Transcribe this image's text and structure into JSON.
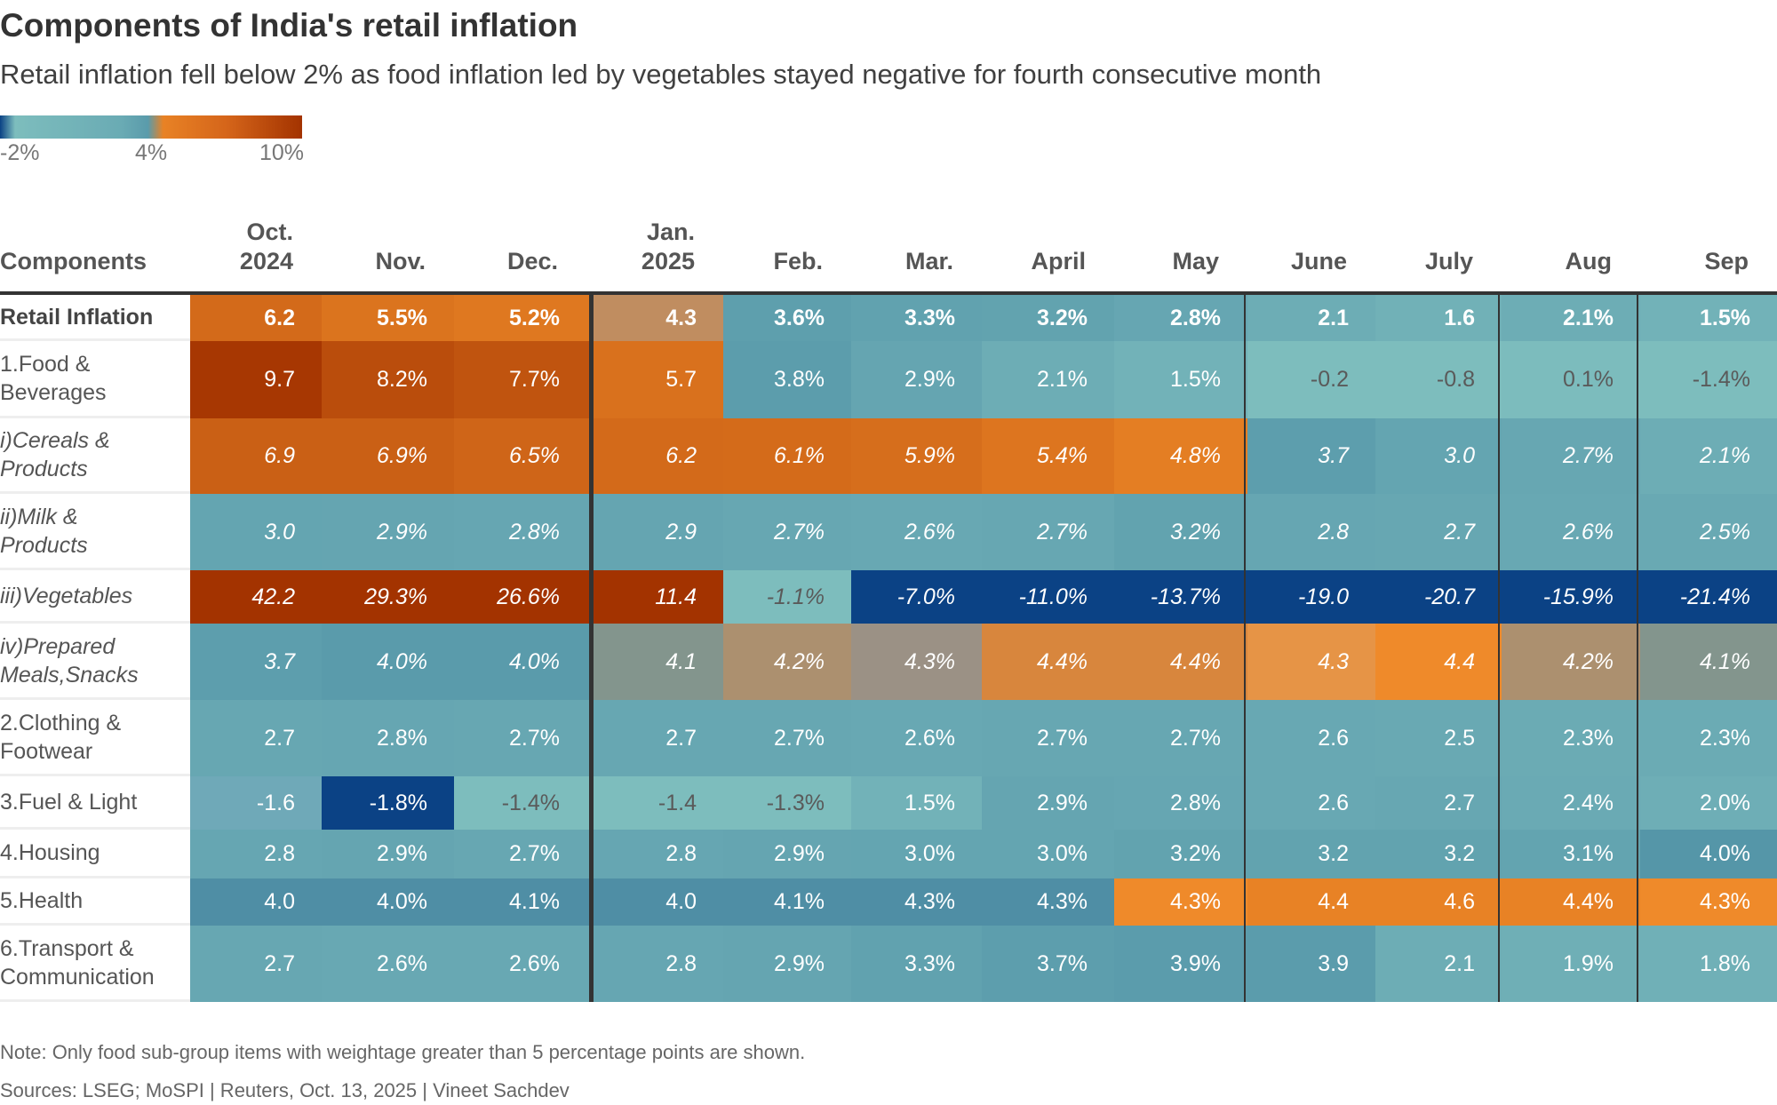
{
  "title": "Components of India's retail inflation",
  "subtitle": "Retail inflation fell below 2% as food inflation led by vegetables stayed negative for fourth consecutive month",
  "legend": {
    "labels": [
      "-2%",
      "4%",
      "10%"
    ],
    "colors": [
      "#0b4285",
      "#7dbdbd",
      "#5a9bab",
      "#e88225",
      "#a33300"
    ]
  },
  "note": "Note: Only food sub-group items with weightage greater than 5 percentage points are shown.",
  "source": "Sources: LSEG; MoSPI | Reuters, Oct. 13, 2025 | Vineet Sachdev",
  "chart_data": {
    "type": "heatmap",
    "title": "Components of India's retail inflation",
    "subtitle": "Retail inflation fell below 2% as food inflation led by vegetables stayed negative for fourth consecutive month",
    "row_header": "Components",
    "columns": [
      [
        "Oct.",
        "2024"
      ],
      [
        "",
        "Nov."
      ],
      [
        "",
        "Dec."
      ],
      [
        "Jan.",
        "2025"
      ],
      [
        "",
        "Feb."
      ],
      [
        "",
        "Mar."
      ],
      [
        "",
        "April"
      ],
      [
        "",
        "May"
      ],
      [
        "",
        "June"
      ],
      [
        "",
        "July"
      ],
      [
        "",
        "Aug"
      ],
      [
        "",
        "Sep"
      ]
    ],
    "rows": [
      {
        "label": [
          "Retail Inflation"
        ],
        "style": "bold",
        "values": [
          6.2,
          5.5,
          5.2,
          4.3,
          3.6,
          3.3,
          3.2,
          2.8,
          2.1,
          1.6,
          2.1,
          1.5
        ]
      },
      {
        "label": [
          "1.Food &",
          "Beverages"
        ],
        "style": "normal",
        "values": [
          9.7,
          8.2,
          7.7,
          5.7,
          3.8,
          2.9,
          2.1,
          1.5,
          -0.2,
          -0.8,
          0.1,
          -1.4
        ]
      },
      {
        "label": [
          "i)Cereals &",
          "Products"
        ],
        "style": "ital",
        "values": [
          6.9,
          6.9,
          6.5,
          6.2,
          6.1,
          5.9,
          5.4,
          4.8,
          3.7,
          3.0,
          2.7,
          2.1
        ]
      },
      {
        "label": [
          "ii)Milk &",
          "Products"
        ],
        "style": "ital",
        "values": [
          3.0,
          2.9,
          2.8,
          2.9,
          2.7,
          2.6,
          2.7,
          3.2,
          2.8,
          2.7,
          2.6,
          2.5
        ]
      },
      {
        "label": [
          "iii)Vegetables"
        ],
        "style": "ital",
        "values": [
          42.2,
          29.3,
          26.6,
          11.4,
          -1.1,
          -7.0,
          -11.0,
          -13.7,
          -19.0,
          -20.7,
          -15.9,
          -21.4
        ]
      },
      {
        "label": [
          "iv)Prepared",
          "Meals,Snacks"
        ],
        "style": "ital",
        "values": [
          3.7,
          4.0,
          4.0,
          4.1,
          4.2,
          4.3,
          4.4,
          4.4,
          4.3,
          4.4,
          4.2,
          4.1
        ]
      },
      {
        "label": [
          "2.Clothing &",
          "Footwear"
        ],
        "style": "normal",
        "values": [
          2.7,
          2.8,
          2.7,
          2.7,
          2.7,
          2.6,
          2.7,
          2.7,
          2.6,
          2.5,
          2.3,
          2.3
        ]
      },
      {
        "label": [
          "3.Fuel & Light"
        ],
        "style": "normal",
        "values": [
          -1.6,
          -1.8,
          -1.4,
          -1.4,
          -1.3,
          1.5,
          2.9,
          2.8,
          2.6,
          2.7,
          2.4,
          2.0
        ]
      },
      {
        "label": [
          "4.Housing"
        ],
        "style": "normal",
        "values": [
          2.8,
          2.9,
          2.7,
          2.8,
          2.9,
          3.0,
          3.0,
          3.2,
          3.2,
          3.2,
          3.1,
          4.0
        ]
      },
      {
        "label": [
          "5.Health"
        ],
        "style": "normal",
        "values": [
          4.0,
          4.0,
          4.1,
          4.0,
          4.1,
          4.3,
          4.3,
          4.3,
          4.4,
          4.6,
          4.4,
          4.3
        ]
      },
      {
        "label": [
          "6.Transport &",
          "Communication"
        ],
        "style": "normal",
        "values": [
          2.7,
          2.6,
          2.6,
          2.8,
          2.9,
          3.3,
          3.7,
          3.9,
          3.9,
          2.1,
          1.9,
          1.8
        ]
      }
    ],
    "percent_suffix_columns": [
      false,
      true,
      true,
      false,
      true,
      true,
      true,
      true,
      false,
      false,
      true,
      true
    ],
    "color_scale": {
      "min": -2,
      "mid": 4,
      "max": 10
    },
    "color_overrides": {
      "5-5": "#9b9185",
      "5-8": "#e69446",
      "5-9": "#ef8a2a",
      "9-5": "#4f8ea5",
      "9-6": "#4f8ea5",
      "9-7": "#ef8a2a",
      "9-8": "#e88225",
      "9-9": "#e88225",
      "9-10": "#e88225",
      "9-11": "#ef8a2a",
      "9-0": "#4f8ea5",
      "9-1": "#4f8ea5",
      "9-2": "#4f8ea5",
      "9-3": "#4f8ea5",
      "9-4": "#4f8ea5",
      "0-3": "#c08d60",
      "7-0": "#6fa9b8",
      "8-11": "#5596a8"
    }
  }
}
